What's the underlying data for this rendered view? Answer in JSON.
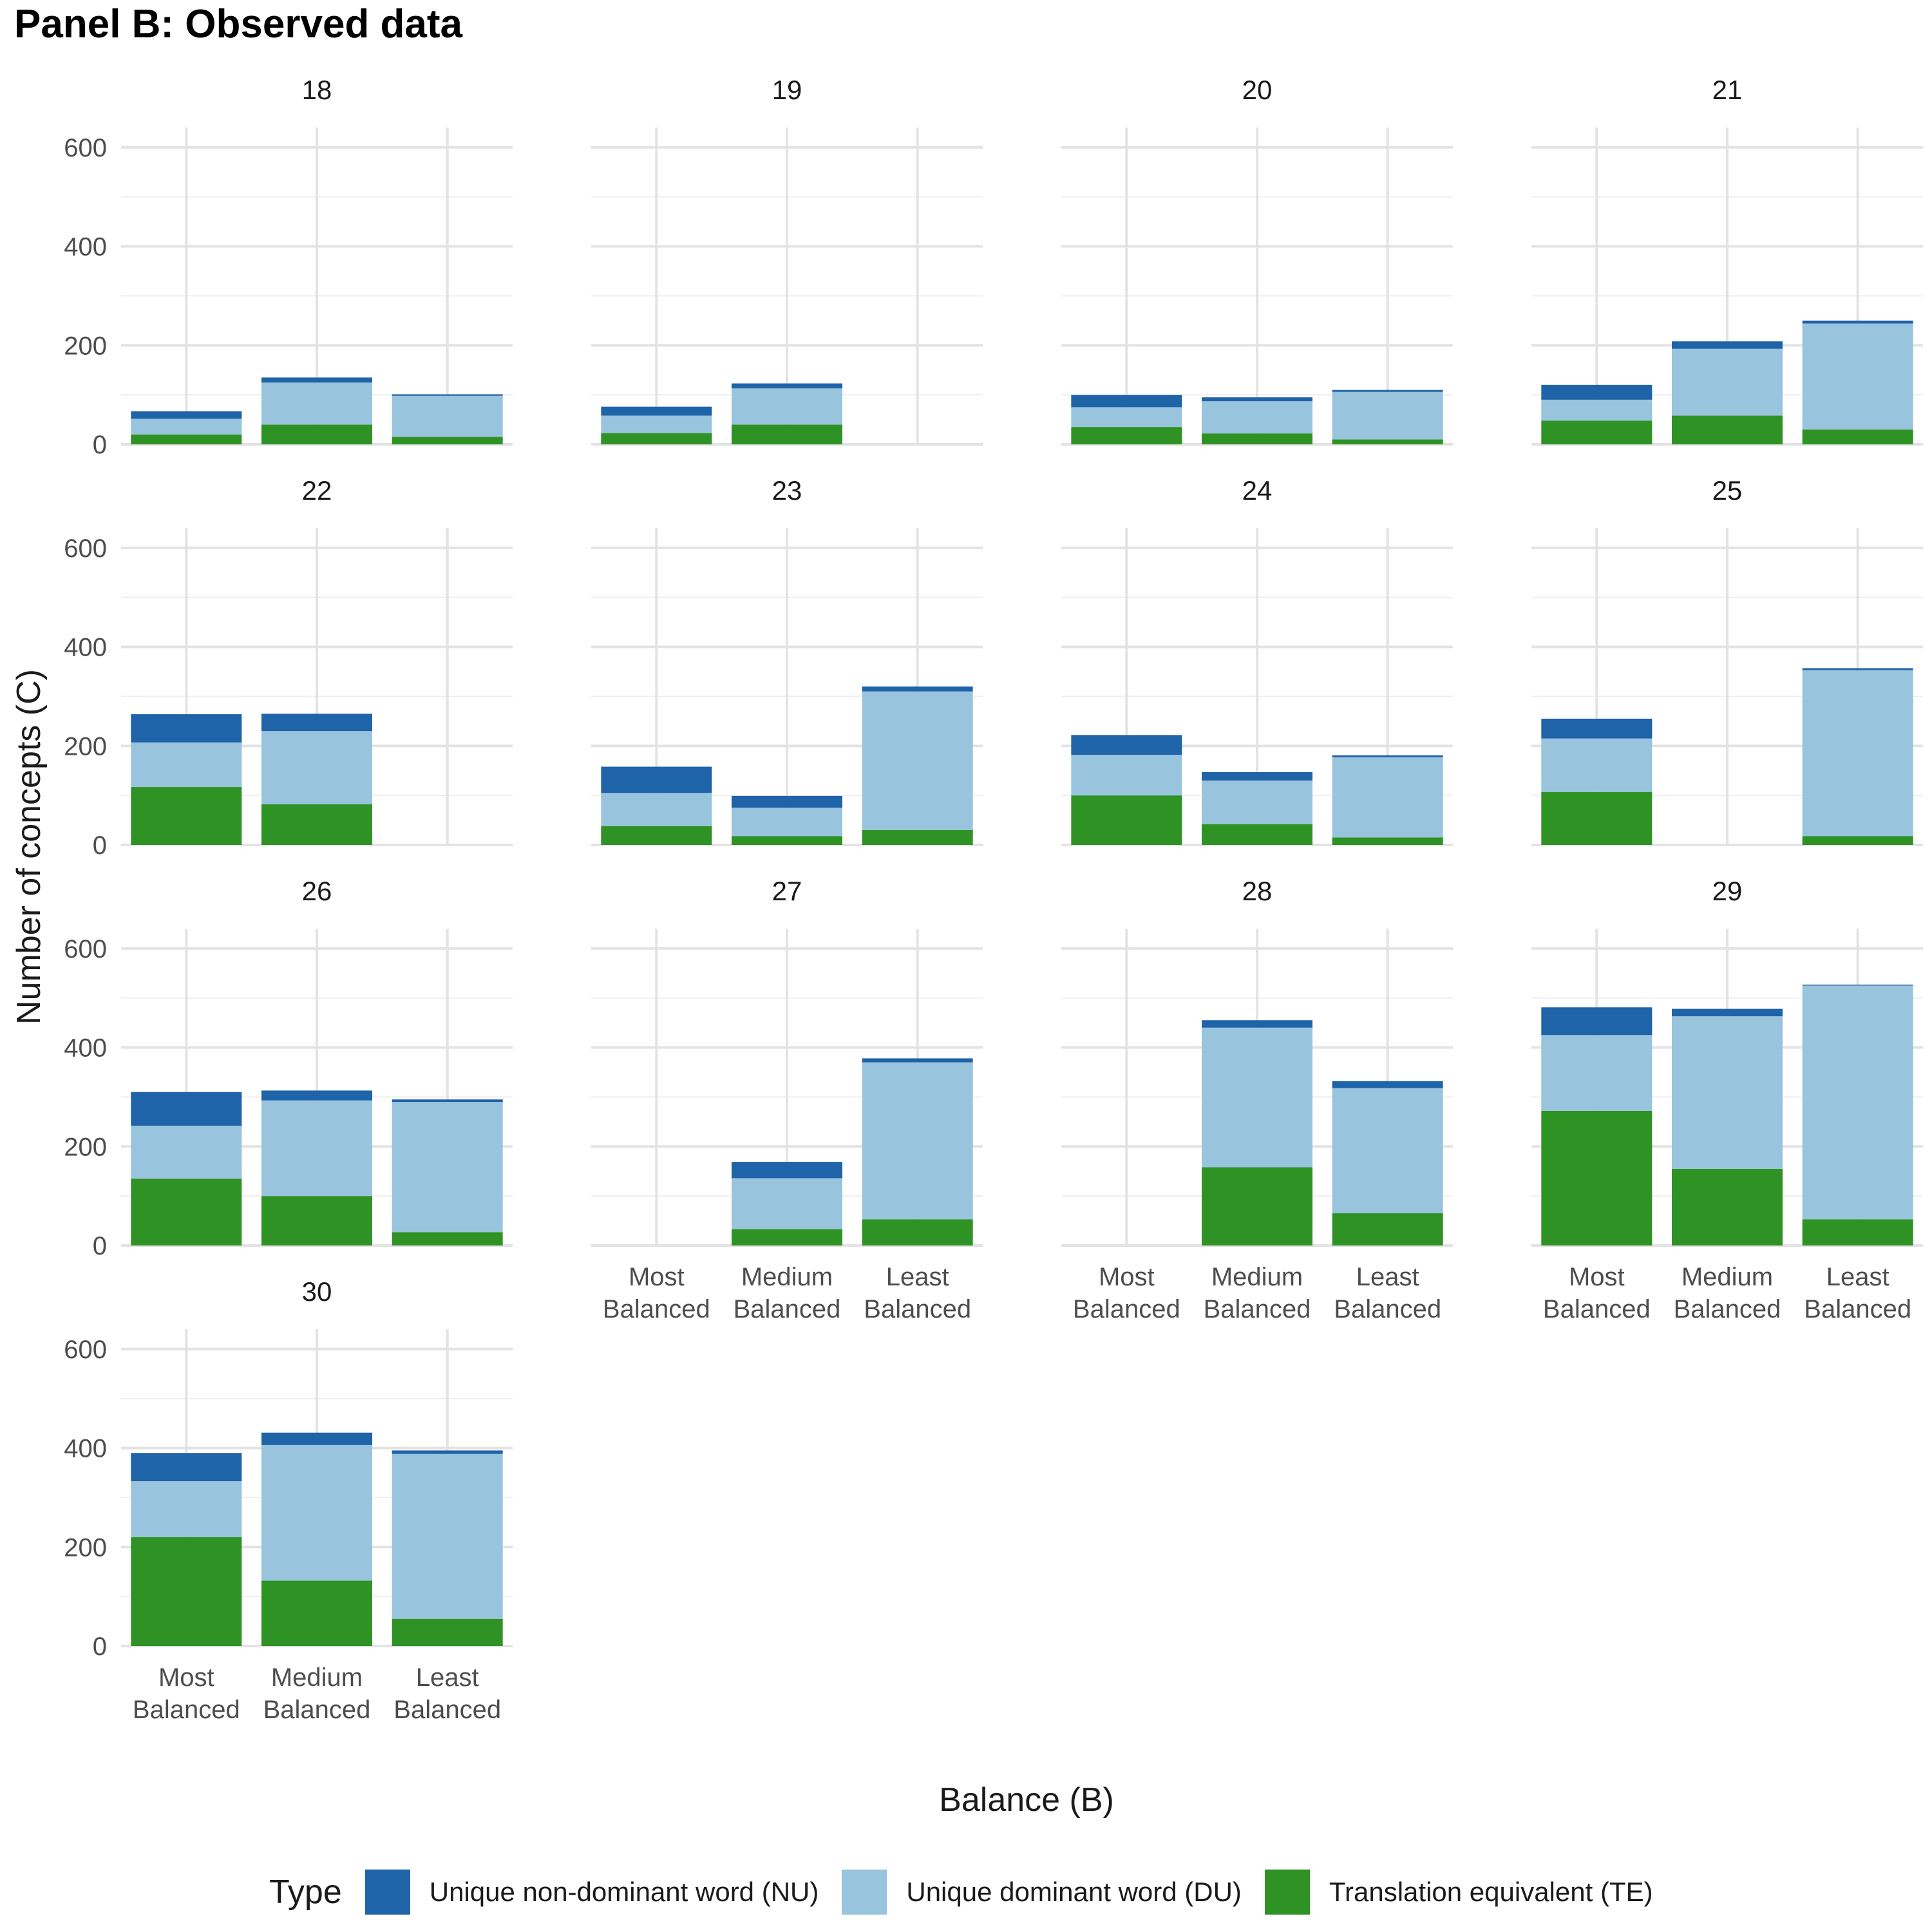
{
  "title": "Panel B: Observed data",
  "chart_data": {
    "type": "bar",
    "stacked": true,
    "faceted": true,
    "xlabel": "Balance (B)",
    "ylabel": "Number of concepts (C)",
    "ylim": [
      0,
      640
    ],
    "yticks": [
      0,
      200,
      400,
      600
    ],
    "grid": true,
    "legend_position": "bottom",
    "legend_title": "Type",
    "categories": [
      "Most Balanced",
      "Medium Balanced",
      "Least Balanced"
    ],
    "category_lines": [
      [
        "Most",
        "Balanced"
      ],
      [
        "Medium",
        "Balanced"
      ],
      [
        "Least",
        "Balanced"
      ]
    ],
    "series": [
      {
        "name": "Translation equivalent (TE)",
        "key": "TE",
        "color": "#2e9224"
      },
      {
        "name": "Unique dominant word (DU)",
        "key": "DU",
        "color": "#98c4dd"
      },
      {
        "name": "Unique non-dominant word (NU)",
        "key": "NU",
        "color": "#1f63a8"
      }
    ],
    "legend_order": [
      "NU",
      "DU",
      "TE"
    ],
    "facets": [
      {
        "label": "18",
        "data": [
          {
            "TE": 20,
            "DU": 32,
            "NU": 15
          },
          {
            "TE": 40,
            "DU": 85,
            "NU": 10
          },
          {
            "TE": 15,
            "DU": 83,
            "NU": 3
          }
        ]
      },
      {
        "label": "19",
        "data": [
          {
            "TE": 23,
            "DU": 35,
            "NU": 18
          },
          {
            "TE": 40,
            "DU": 73,
            "NU": 10
          },
          null
        ]
      },
      {
        "label": "20",
        "data": [
          {
            "TE": 35,
            "DU": 40,
            "NU": 25
          },
          {
            "TE": 22,
            "DU": 65,
            "NU": 8
          },
          {
            "TE": 10,
            "DU": 96,
            "NU": 4
          }
        ]
      },
      {
        "label": "21",
        "data": [
          {
            "TE": 48,
            "DU": 42,
            "NU": 30
          },
          {
            "TE": 58,
            "DU": 135,
            "NU": 15
          },
          {
            "TE": 30,
            "DU": 214,
            "NU": 6
          }
        ]
      },
      {
        "label": "22",
        "data": [
          {
            "TE": 117,
            "DU": 90,
            "NU": 57
          },
          {
            "TE": 82,
            "DU": 148,
            "NU": 35
          },
          null
        ]
      },
      {
        "label": "23",
        "data": [
          {
            "TE": 38,
            "DU": 67,
            "NU": 53
          },
          {
            "TE": 18,
            "DU": 57,
            "NU": 24
          },
          {
            "TE": 30,
            "DU": 280,
            "NU": 10
          }
        ]
      },
      {
        "label": "24",
        "data": [
          {
            "TE": 100,
            "DU": 82,
            "NU": 40
          },
          {
            "TE": 42,
            "DU": 88,
            "NU": 17
          },
          {
            "TE": 15,
            "DU": 162,
            "NU": 4
          }
        ]
      },
      {
        "label": "25",
        "data": [
          {
            "TE": 107,
            "DU": 108,
            "NU": 40
          },
          null,
          {
            "TE": 18,
            "DU": 335,
            "NU": 4
          }
        ]
      },
      {
        "label": "26",
        "data": [
          {
            "TE": 135,
            "DU": 107,
            "NU": 68
          },
          {
            "TE": 100,
            "DU": 193,
            "NU": 20
          },
          {
            "TE": 27,
            "DU": 263,
            "NU": 5
          }
        ]
      },
      {
        "label": "27",
        "data": [
          null,
          {
            "TE": 33,
            "DU": 103,
            "NU": 33
          },
          {
            "TE": 53,
            "DU": 317,
            "NU": 8
          }
        ]
      },
      {
        "label": "28",
        "data": [
          null,
          {
            "TE": 158,
            "DU": 282,
            "NU": 15
          },
          {
            "TE": 65,
            "DU": 253,
            "NU": 14
          }
        ]
      },
      {
        "label": "29",
        "data": [
          {
            "TE": 272,
            "DU": 153,
            "NU": 56
          },
          {
            "TE": 155,
            "DU": 308,
            "NU": 15
          },
          {
            "TE": 53,
            "DU": 472,
            "NU": 2
          }
        ]
      },
      {
        "label": "30",
        "data": [
          {
            "TE": 220,
            "DU": 113,
            "NU": 57
          },
          {
            "TE": 132,
            "DU": 274,
            "NU": 25
          },
          {
            "TE": 55,
            "DU": 333,
            "NU": 7
          }
        ]
      }
    ]
  }
}
